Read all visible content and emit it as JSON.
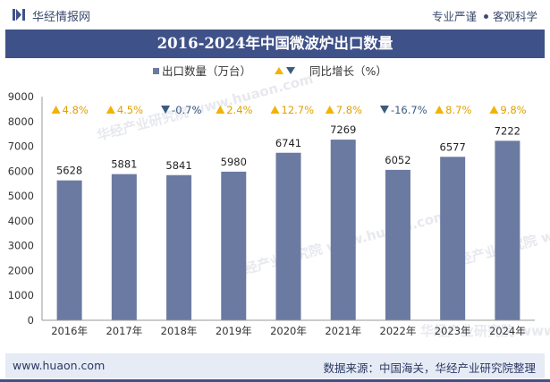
{
  "header": {
    "brand_name": "华经情报网",
    "tagline_left": "专业严谨",
    "tagline_right": "客观科学"
  },
  "colors": {
    "bar": "#6b7aa1",
    "title_bg": "#3e5188",
    "up_marker": "#f2b300",
    "down_marker": "#3d5a80",
    "footer_bg": "#e6ebf5"
  },
  "watermark": "华经产业研究院 www.huaon.com",
  "footer": {
    "url": "www.huaon.com",
    "source": "数据来源：中国海关，华经产业研究院整理"
  },
  "chart_data": {
    "type": "bar",
    "title": "2016-2024年中国微波炉出口数量",
    "categories": [
      "2016年",
      "2017年",
      "2018年",
      "2019年",
      "2020年",
      "2021年",
      "2022年",
      "2023年",
      "2024年"
    ],
    "series": [
      {
        "name": "出口数量（万台）",
        "values": [
          5628,
          5881,
          5841,
          5980,
          6741,
          7269,
          6052,
          6577,
          7222
        ]
      },
      {
        "name": "同比增长（%）",
        "values": [
          4.8,
          4.5,
          -0.7,
          2.4,
          12.7,
          7.8,
          -16.7,
          8.7,
          9.8
        ]
      }
    ],
    "growth_labels": [
      "4.8%",
      "4.5%",
      "-0.7%",
      "2.4%",
      "12.7%",
      "7.8%",
      "-16.7%",
      "8.7%",
      "9.8%"
    ],
    "yticks": [
      "0",
      "1000",
      "2000",
      "3000",
      "4000",
      "5000",
      "6000",
      "7000",
      "8000",
      "9000"
    ],
    "ylim": [
      0,
      9000
    ],
    "legend": {
      "bar_label": "出口数量（万台）",
      "growth_label": "同比增长（%）",
      "placement": "top-center"
    },
    "grid": false
  }
}
